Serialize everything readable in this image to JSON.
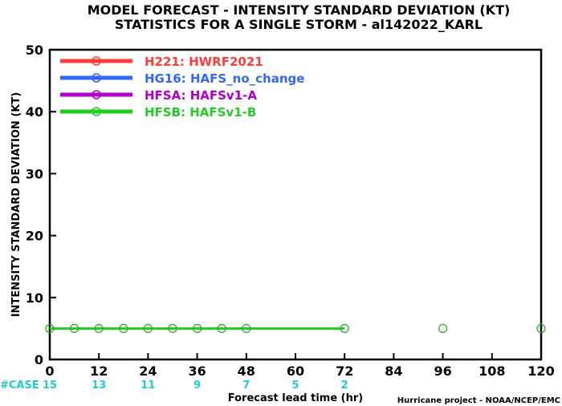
{
  "chart_data": {
    "type": "line",
    "title": "MODEL FORECAST - INTENSITY STANDARD DEVIATION (KT)",
    "subtitle": "STATISTICS FOR A SINGLE STORM - al142022_KARL",
    "xlabel": "Forecast lead time (hr)",
    "ylabel": "INTENSITY STANDARD DEVIATION (KT)",
    "xlim": [
      0,
      120
    ],
    "ylim": [
      0,
      50
    ],
    "xticks": [
      "0",
      "12",
      "24",
      "36",
      "48",
      "60",
      "72",
      "84",
      "96",
      "108",
      "120"
    ],
    "yticks": [
      "0",
      "10",
      "20",
      "30",
      "40",
      "50"
    ],
    "series": [
      {
        "name": "H221",
        "label": "HWRF2021",
        "color": "#ff3b3b",
        "x": [],
        "y": []
      },
      {
        "name": "HG16",
        "label": "HAFS_no_change",
        "color": "#3366ff",
        "x": [],
        "y": []
      },
      {
        "name": "HFSA",
        "label": "HAFSv1-A",
        "color": "#b000cc",
        "x": [],
        "y": []
      },
      {
        "name": "HFSB",
        "label": "HAFSv1-B",
        "color": "#22cc22",
        "x": [
          0,
          6,
          12,
          18,
          24,
          30,
          36,
          42,
          48,
          72
        ],
        "y": [
          5,
          5,
          5,
          5,
          5,
          5,
          5,
          5,
          5,
          5
        ]
      }
    ],
    "unconnected_markers": {
      "color": "#22aa22",
      "x": [
        96,
        120
      ],
      "y": [
        5,
        5
      ]
    },
    "legend_position": "top-left",
    "grid": false,
    "case_counts": {
      "label": "#CASE",
      "color": "#22cccc",
      "x": [
        0,
        12,
        24,
        36,
        48,
        60,
        72
      ],
      "counts": [
        "15",
        "13",
        "11",
        "9",
        "7",
        "5",
        "2"
      ]
    }
  },
  "credit": "Hurricane project - NOAA/NCEP/EMC"
}
